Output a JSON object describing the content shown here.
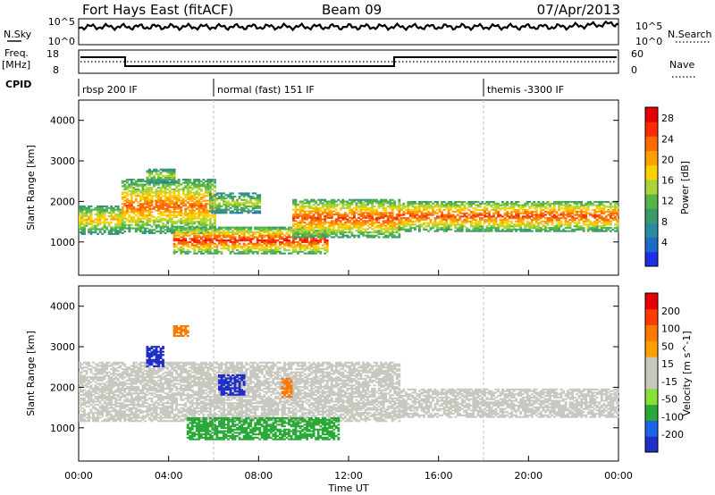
{
  "header": {
    "station": "Fort Hays East (fitACF)",
    "beam": "Beam 09",
    "date": "07/Apr/2013"
  },
  "top_panels": {
    "nsky_label": "N.Sky",
    "nsky_ticks": [
      "10^5",
      "10^0"
    ],
    "nsearch_label": "N.Search",
    "nsearch_ticks": [
      "10^5",
      "10^0"
    ],
    "freq_label": "Freq.",
    "freq_unit": "[MHz]",
    "freq_ticks": [
      "18",
      "8"
    ],
    "nave_label": "Nave",
    "nave_ticks": [
      "60",
      "0"
    ],
    "cpid_label": "CPID",
    "cpid_segments": [
      {
        "label": "rbsp 200 IF",
        "start": 0
      },
      {
        "label": "normal (fast) 151 IF",
        "start": 6
      },
      {
        "label": "themis -3300 IF",
        "start": 18
      }
    ]
  },
  "chart_data": [
    {
      "type": "heatmap",
      "name": "power",
      "ylabel": "Slant Range [km]",
      "ylim": [
        180,
        4500
      ],
      "y_ticks": [
        1000,
        2000,
        3000,
        4000
      ],
      "xlim": [
        0,
        24
      ],
      "colorbar": {
        "label": "Power [dB]",
        "ticks": [
          4,
          8,
          12,
          16,
          20,
          24,
          28
        ],
        "colors": [
          "#1c2ee6",
          "#1e6ac8",
          "#2a8aa0",
          "#3a9a6e",
          "#55b548",
          "#a8d43a",
          "#ffd100",
          "#ffa000",
          "#ff6a00",
          "#ff2a00",
          "#e60000"
        ]
      },
      "echo_bands": [
        {
          "t0": 0.0,
          "t1": 1.9,
          "r_lo": 1180,
          "r_hi": 1900,
          "peak": 20
        },
        {
          "t0": 1.9,
          "t1": 6.0,
          "r_lo": 1200,
          "r_hi": 2550,
          "peak": 24
        },
        {
          "t0": 4.2,
          "t1": 11.0,
          "r_lo": 700,
          "r_hi": 1350,
          "peak": 28
        },
        {
          "t0": 3.0,
          "t1": 4.3,
          "r_lo": 2450,
          "r_hi": 2800,
          "peak": 16
        },
        {
          "t0": 5.8,
          "t1": 8.0,
          "r_lo": 1700,
          "r_hi": 2200,
          "peak": 16
        },
        {
          "t0": 9.5,
          "t1": 14.2,
          "r_lo": 1100,
          "r_hi": 2050,
          "peak": 26
        },
        {
          "t0": 14.2,
          "t1": 24.0,
          "r_lo": 1250,
          "r_hi": 2000,
          "peak": 26
        }
      ]
    },
    {
      "type": "heatmap",
      "name": "velocity",
      "ylabel": "Slant Range [km]",
      "ylim": [
        180,
        4500
      ],
      "y_ticks": [
        1000,
        2000,
        3000,
        4000
      ],
      "xlabel": "Time UT",
      "xlim": [
        0,
        24
      ],
      "x_ticks": [
        "00:00",
        "04:00",
        "08:00",
        "12:00",
        "16:00",
        "20:00",
        "00:00"
      ],
      "colorbar": {
        "label": "Velocity [m s^-1]",
        "ticks": [
          200,
          100,
          50,
          15,
          -15,
          -50,
          -100,
          -200
        ],
        "colors": [
          "#1e2ec8",
          "#1e64e6",
          "#2aa838",
          "#88e03a",
          "#c8c8c0",
          "#c8c8c0",
          "#ffa000",
          "#ff7800",
          "#ff3c00",
          "#e60000"
        ]
      },
      "echo_bands": [
        {
          "t0": 0.0,
          "t1": 14.2,
          "r_lo": 1150,
          "r_hi": 2600,
          "v": 0
        },
        {
          "t0": 14.2,
          "t1": 24.0,
          "r_lo": 1250,
          "r_hi": 1950,
          "v": 0
        },
        {
          "t0": 4.8,
          "t1": 11.5,
          "r_lo": 700,
          "r_hi": 1250,
          "v": 60
        },
        {
          "t0": 3.0,
          "t1": 3.8,
          "r_lo": 2500,
          "r_hi": 3000,
          "v": 250
        },
        {
          "t0": 6.2,
          "t1": 7.3,
          "r_lo": 1800,
          "r_hi": 2300,
          "v": 200
        },
        {
          "t0": 4.2,
          "t1": 4.8,
          "r_lo": 3250,
          "r_hi": 3500,
          "v": -60
        },
        {
          "t0": 9.0,
          "t1": 9.4,
          "r_lo": 1750,
          "r_hi": 2200,
          "v": -60
        }
      ]
    }
  ]
}
